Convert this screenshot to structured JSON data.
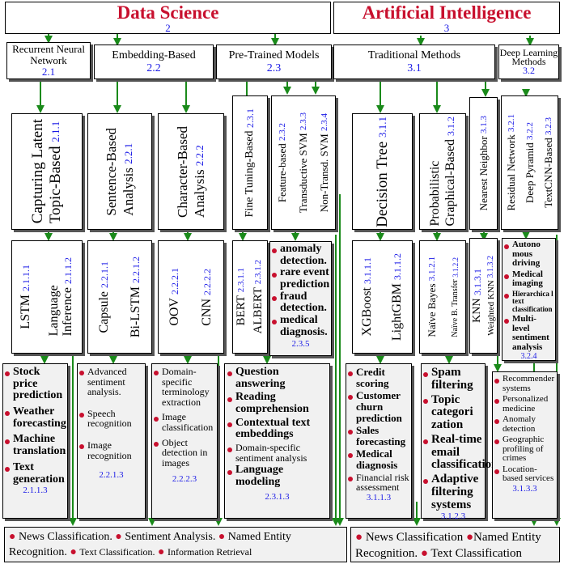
{
  "top": {
    "ds": {
      "title": "Data Science",
      "num": "2"
    },
    "ai": {
      "title": "Artificial Intelligence",
      "num": "3"
    }
  },
  "level2": [
    {
      "label": "Recurrent Neural Network",
      "num": "2.1"
    },
    {
      "label": "Embedding-Based",
      "num": "2.2"
    },
    {
      "label": "Pre-Trained Models",
      "num": "2.3"
    },
    {
      "label": "Traditional Methods",
      "num": "3.1"
    },
    {
      "label": "Deep Learning Methods",
      "num": "3.2"
    }
  ],
  "level3": {
    "latent": {
      "label1": "Capturing Latent",
      "label2": "Topic-Based",
      "num": "2.1.1"
    },
    "sentence": {
      "label1": "Sentence-Based",
      "label2": "Analysis",
      "num": "2.2.1"
    },
    "character": {
      "label1": "Character-Based",
      "label2": "Analysis",
      "num": "2.2.2"
    },
    "finetune": {
      "label": "Fine Tuning-Based",
      "num": "2.3.1"
    },
    "feature": {
      "label": "Feature-based",
      "num": "2.3.2"
    },
    "tsvm": {
      "label": "Transductive SVM",
      "num": "2.3.3"
    },
    "ntsvm": {
      "label": "Non-Transd. SVM",
      "num": "2.3.4"
    },
    "dtree": {
      "label": "Decision Tree",
      "num": "3.1.1"
    },
    "prob": {
      "label1": "Probabilistic",
      "label2": "Graphical-Based",
      "num": "3.1.2"
    },
    "nn": {
      "label": "Nearest Neighbor",
      "num": "3.1.3"
    },
    "resnet": {
      "label": "Residual Network",
      "num": "3.2.1"
    },
    "dpyr": {
      "label": "Deep Pyramid",
      "num": "3.2.2"
    },
    "textcnn": {
      "label": "TextCNN-Based",
      "num": "3.2.3"
    }
  },
  "level4": {
    "lstm": {
      "label": "LSTM",
      "num": "2.1.1.1"
    },
    "langinf": {
      "label1": "Language",
      "label2": "Inference",
      "num": "2.1.1.2"
    },
    "capsule": {
      "label": "Capsule",
      "num": "2.2.1.1"
    },
    "bilstm": {
      "label": "Bi-LSTM",
      "num": "2.2.1.2"
    },
    "oov": {
      "label": "OOV",
      "num": "2.2.2.1"
    },
    "cnn": {
      "label": "CNN",
      "num": "2.2.2.2"
    },
    "bert": {
      "label": "BERT",
      "num": "2.3.1.1"
    },
    "albert": {
      "label": "ALBERT",
      "num": "2.3.1.2"
    },
    "xgboost": {
      "label": "XGBoost",
      "num": "3.1.1.1"
    },
    "lightgbm": {
      "label": "LightGBM",
      "num": "3.1.1.2"
    },
    "nbayes": {
      "label": "Naïve Bayes",
      "num": "3.1.2.1"
    },
    "nbtransfer": {
      "label": "Naïve B. Transfer",
      "num": "3.1.2.2"
    },
    "knn": {
      "label": "KNN",
      "num": "3.1.3.1"
    },
    "wknn": {
      "label": "Weighted KNN",
      "num": "3.1.3.2"
    }
  },
  "apps": {
    "svm": {
      "items": [
        "anomaly detection.",
        "rare event prediction",
        "fraud detection.",
        "medical diagnosis."
      ],
      "num": "2.3.5"
    },
    "dl": {
      "items": [
        "Autono mous driving",
        "Medical imaging",
        "Hierarchica l text classification",
        "Multi-level sentiment analysis"
      ],
      "num": "3.2.4"
    },
    "rnn": {
      "items": [
        "Stock price prediction",
        "Weather forecasting",
        "Machine translation",
        "Text generation"
      ],
      "num": "2.1.1.3"
    },
    "emb1": {
      "items": [
        "Advanced sentiment analysis.",
        "Speech recognition",
        "Image recognition"
      ],
      "num": "2.2.1.3"
    },
    "emb2": {
      "items": [
        "Domain-specific terminology extraction",
        "Image classification",
        "Object detection in images"
      ],
      "num": "2.2.2.3"
    },
    "pre": {
      "items": [
        "Question answering",
        "Reading comprehension",
        "Contextual text embeddings",
        "Domain-specific sentiment analysis",
        "Language modeling"
      ],
      "num": "2.3.1.3"
    },
    "trad1": {
      "items": [
        "Credit scoring",
        "Customer churn prediction",
        "Sales forecasting",
        "Medical diagnosis",
        "Financial risk assessment"
      ],
      "num": "3.1.1.3"
    },
    "trad2": {
      "items": [
        "Spam filtering",
        "Topic categori zation",
        "Real-time email classification",
        "Adaptive filtering systems"
      ],
      "num": "3.1.2.3"
    },
    "trad3": {
      "items": [
        "Recommender systems",
        "Personalized medicine",
        "Anomaly detection",
        "Geographic profiling of crimes",
        "Location-based services"
      ],
      "num": "3.1.3.3"
    }
  },
  "bottom": {
    "ds": {
      "items": [
        "News Classification.",
        "Sentiment Analysis.",
        "Named Entity Recognition.",
        "Text Classification.",
        "Information Retrieval"
      ]
    },
    "ai": {
      "items": [
        "News Classification",
        "Named Entity Recognition.",
        "Text Classification"
      ]
    }
  }
}
